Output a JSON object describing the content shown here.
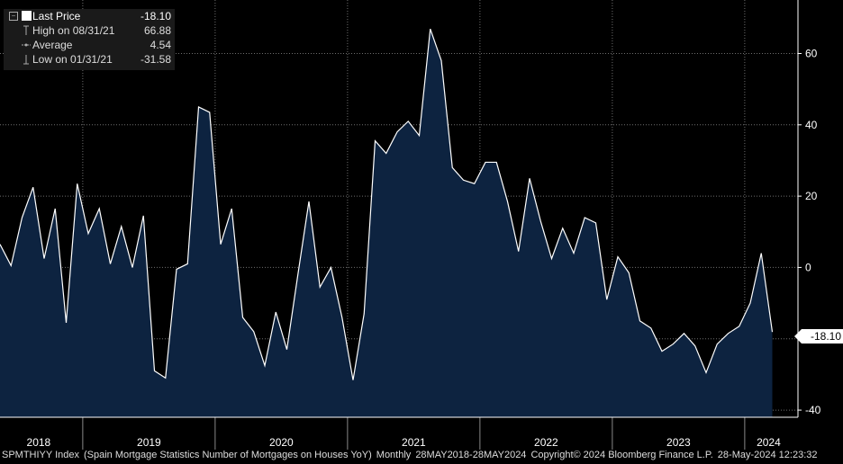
{
  "chart_data": {
    "type": "area",
    "ticker": "SPMTHIYY Index",
    "x": [
      "2018-05",
      "2018-06",
      "2018-07",
      "2018-08",
      "2018-09",
      "2018-10",
      "2018-11",
      "2018-12",
      "2019-01",
      "2019-02",
      "2019-03",
      "2019-04",
      "2019-05",
      "2019-06",
      "2019-07",
      "2019-08",
      "2019-09",
      "2019-10",
      "2019-11",
      "2019-12",
      "2020-01",
      "2020-02",
      "2020-03",
      "2020-04",
      "2020-05",
      "2020-06",
      "2020-07",
      "2020-08",
      "2020-09",
      "2020-10",
      "2020-11",
      "2020-12",
      "2021-01",
      "2021-02",
      "2021-03",
      "2021-04",
      "2021-05",
      "2021-06",
      "2021-07",
      "2021-08",
      "2021-09",
      "2021-10",
      "2021-11",
      "2021-12",
      "2022-01",
      "2022-02",
      "2022-03",
      "2022-04",
      "2022-05",
      "2022-06",
      "2022-07",
      "2022-08",
      "2022-09",
      "2022-10",
      "2022-11",
      "2022-12",
      "2023-01",
      "2023-02",
      "2023-03",
      "2023-04",
      "2023-05",
      "2023-06",
      "2023-07",
      "2023-08",
      "2023-09",
      "2023-10",
      "2023-11",
      "2023-12",
      "2024-01",
      "2024-02",
      "2024-03"
    ],
    "series": [
      {
        "name": "Last Price",
        "values": [
          6.5,
          0.5,
          14,
          22.5,
          2.5,
          16.5,
          -15.5,
          23.5,
          9.5,
          16.5,
          1,
          11.5,
          0,
          14.5,
          -29,
          -31,
          -0.5,
          1,
          45,
          43.5,
          6.5,
          16.5,
          -14,
          -18,
          -27.5,
          -12.5,
          -23,
          -2,
          18.5,
          -5.5,
          0,
          -14,
          -31.58,
          -13,
          35.5,
          32,
          38,
          41,
          37,
          66.88,
          58,
          28,
          24.5,
          23.5,
          29.5,
          29.5,
          18.5,
          4.5,
          25,
          13,
          2.5,
          11,
          4,
          14,
          12.5,
          -9,
          3,
          -1.5,
          -15,
          -17,
          -23.5,
          -21.5,
          -18.5,
          -22,
          -29.5,
          -21.5,
          -18.5,
          -16.5,
          -10,
          4,
          -18.1
        ]
      }
    ],
    "ylim": [
      -42,
      75
    ],
    "yticks": [
      -40,
      -20,
      0,
      20,
      40,
      60
    ],
    "years": [
      "2018",
      "2019",
      "2020",
      "2021",
      "2022",
      "2023",
      "2024"
    ],
    "last_label": "-18.10",
    "grid": true,
    "legend_position": "top-left"
  },
  "legend": {
    "last_price_label": "Last Price",
    "last_price_value": "-18.10",
    "high_label": "High on 08/31/21",
    "high_value": "66.88",
    "average_label": "Average",
    "average_value": "4.54",
    "low_label": "Low on 01/31/21",
    "low_value": "-31.58"
  },
  "footer": {
    "ticker": "SPMTHIYY Index",
    "description": "(Spain Mortgage Statistics Number of Mortgages on Houses YoY)",
    "frequency": "Monthly",
    "range": "28MAY2018-28MAY2024",
    "copyright": "Copyright© 2024 Bloomberg Finance L.P.",
    "timestamp": "28-May-2024 12:23:32"
  },
  "colors": {
    "line": "#ffffff",
    "fill": "#0d2340",
    "grid": "#6e6e6e",
    "axis": "#ffffff",
    "background": "#000000"
  }
}
